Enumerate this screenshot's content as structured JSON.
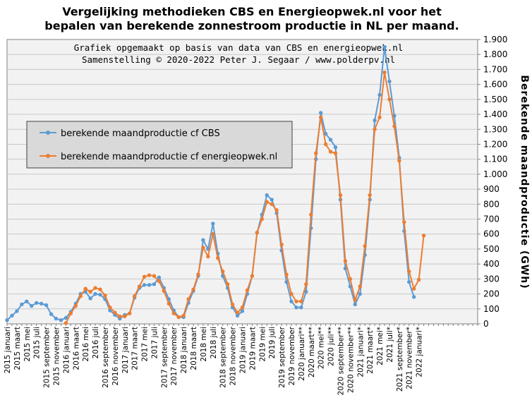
{
  "title_line1": "Vergelijking  methodieken  CBS en Energieopwek.nl  voor het",
  "title_line2": "bepalen van berekende zonnestroom productie in NL per maand.",
  "note_line1": "Grafiek  opgemaakt  op basis  van data van CBS  en energieopwek.nl",
  "note_line2": "Samenstelling  ©  2020-2022  Peter J. Segaar / www.polderpv.nl",
  "chart_data": {
    "type": "line",
    "ylabel": "Berekende  maandproductie  (GWh)",
    "ylim": [
      0,
      1900
    ],
    "yticks": [
      {
        "v": 0,
        "label": "0"
      },
      {
        "v": 100,
        "label": "100"
      },
      {
        "v": 200,
        "label": "200"
      },
      {
        "v": 300,
        "label": "300"
      },
      {
        "v": 400,
        "label": "400"
      },
      {
        "v": 500,
        "label": "500"
      },
      {
        "v": 600,
        "label": "600"
      },
      {
        "v": 700,
        "label": "700"
      },
      {
        "v": 800,
        "label": "800"
      },
      {
        "v": 900,
        "label": "900"
      },
      {
        "v": 1000,
        "label": "1.000"
      },
      {
        "v": 1100,
        "label": "1.100"
      },
      {
        "v": 1200,
        "label": "1.200"
      },
      {
        "v": 1300,
        "label": "1.300"
      },
      {
        "v": 1400,
        "label": "1.400"
      },
      {
        "v": 1500,
        "label": "1.500"
      },
      {
        "v": 1600,
        "label": "1.600"
      },
      {
        "v": 1700,
        "label": "1.700"
      },
      {
        "v": 1800,
        "label": "1.800"
      },
      {
        "v": 1900,
        "label": "1.900"
      }
    ],
    "grid": true,
    "legend_position": "top-left",
    "months_count": 97,
    "x_tick_labels": [
      {
        "i": 0,
        "label": "2015 januari"
      },
      {
        "i": 2,
        "label": "2015 maart"
      },
      {
        "i": 4,
        "label": "2015 mei"
      },
      {
        "i": 6,
        "label": "2015 juli"
      },
      {
        "i": 8,
        "label": "2015 september"
      },
      {
        "i": 10,
        "label": "2015 november"
      },
      {
        "i": 12,
        "label": "2016 januari"
      },
      {
        "i": 14,
        "label": "2016 maart"
      },
      {
        "i": 16,
        "label": "2016 mei"
      },
      {
        "i": 18,
        "label": "2016 juli"
      },
      {
        "i": 20,
        "label": "2016 september"
      },
      {
        "i": 22,
        "label": "2016 november"
      },
      {
        "i": 24,
        "label": "2017 januari"
      },
      {
        "i": 26,
        "label": "2017 maart"
      },
      {
        "i": 28,
        "label": "2017 mei"
      },
      {
        "i": 30,
        "label": "2017 juli"
      },
      {
        "i": 32,
        "label": "2017 september"
      },
      {
        "i": 34,
        "label": "2017 november"
      },
      {
        "i": 36,
        "label": "2018 januari"
      },
      {
        "i": 38,
        "label": "2018 maart"
      },
      {
        "i": 40,
        "label": "2018 mei"
      },
      {
        "i": 42,
        "label": "2018 juli"
      },
      {
        "i": 44,
        "label": "2018 september"
      },
      {
        "i": 46,
        "label": "2018 november"
      },
      {
        "i": 48,
        "label": "2019 januari"
      },
      {
        "i": 50,
        "label": "2019 maart"
      },
      {
        "i": 52,
        "label": "2019 mei"
      },
      {
        "i": 54,
        "label": "2019 juli"
      },
      {
        "i": 56,
        "label": "2019 september"
      },
      {
        "i": 58,
        "label": "2019 november"
      },
      {
        "i": 60,
        "label": "2020 januari**"
      },
      {
        "i": 62,
        "label": "2020 maart**"
      },
      {
        "i": 64,
        "label": "2020 mei**"
      },
      {
        "i": 66,
        "label": "2020 juli**"
      },
      {
        "i": 68,
        "label": "2020 september**"
      },
      {
        "i": 70,
        "label": "2020 november**"
      },
      {
        "i": 72,
        "label": "2021 januari*"
      },
      {
        "i": 74,
        "label": "2021 maart*"
      },
      {
        "i": 76,
        "label": "2021 mei*"
      },
      {
        "i": 78,
        "label": "2021 juli*"
      },
      {
        "i": 80,
        "label": "2021 september*"
      },
      {
        "i": 82,
        "label": "2021 november*"
      },
      {
        "i": 84,
        "label": "2022 januari*"
      }
    ],
    "series": [
      {
        "name": "berekende maandproductie cf CBS",
        "color": "#5B9BD5",
        "values": [
          25,
          55,
          85,
          130,
          150,
          120,
          140,
          135,
          125,
          65,
          35,
          25,
          40,
          80,
          135,
          200,
          215,
          170,
          200,
          195,
          165,
          90,
          60,
          35,
          60,
          70,
          175,
          240,
          260,
          260,
          265,
          310,
          240,
          165,
          90,
          45,
          45,
          140,
          220,
          320,
          560,
          500,
          670,
          470,
          320,
          240,
          110,
          55,
          85,
          200,
          320,
          610,
          730,
          860,
          830,
          740,
          490,
          280,
          150,
          110,
          110,
          215,
          640,
          1100,
          1410,
          1270,
          1230,
          1180,
          830,
          370,
          250,
          130,
          200,
          460,
          830,
          1360,
          1530,
          1850,
          1620,
          1390,
          1110,
          620,
          280,
          180
        ]
      },
      {
        "name": "berekende maandproductie cf energieopwek.nl",
        "color": "#ED7D31",
        "values": [
          null,
          null,
          null,
          null,
          null,
          null,
          null,
          null,
          null,
          null,
          null,
          null,
          5,
          70,
          120,
          185,
          235,
          215,
          240,
          230,
          190,
          110,
          75,
          50,
          50,
          70,
          185,
          250,
          315,
          325,
          320,
          285,
          220,
          135,
          70,
          45,
          55,
          165,
          230,
          330,
          510,
          450,
          600,
          440,
          350,
          265,
          130,
          75,
          110,
          225,
          320,
          610,
          700,
          815,
          800,
          760,
          530,
          330,
          200,
          150,
          150,
          265,
          730,
          1140,
          1380,
          1200,
          1150,
          1140,
          860,
          420,
          300,
          160,
          250,
          520,
          860,
          1300,
          1380,
          1680,
          1500,
          1320,
          1090,
          680,
          350,
          235,
          295,
          590
        ]
      }
    ]
  }
}
